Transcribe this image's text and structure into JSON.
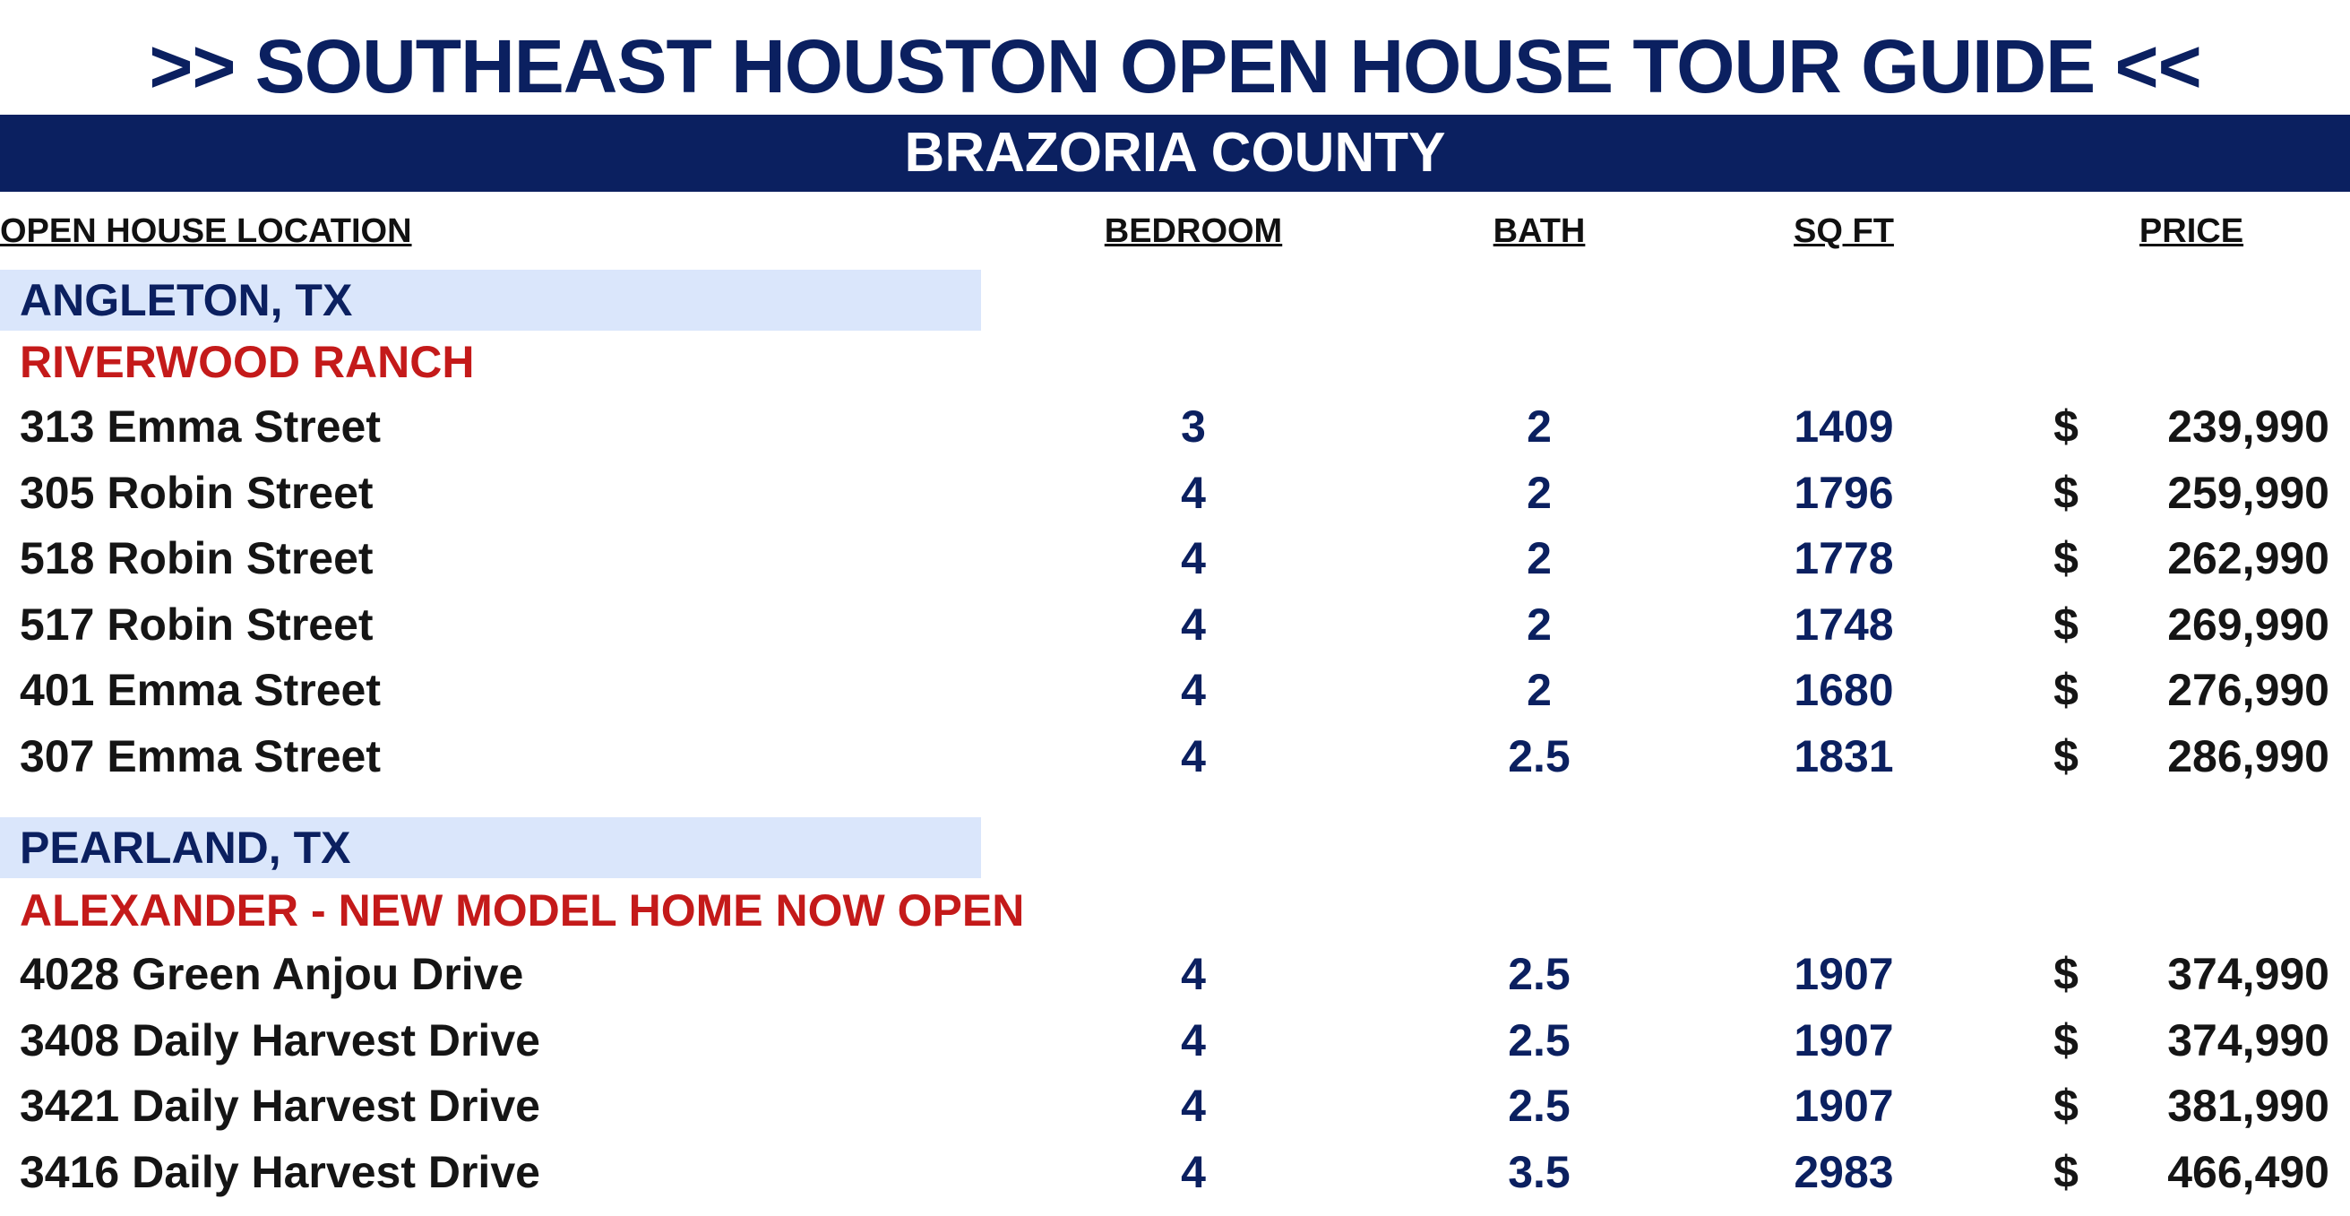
{
  "title": ">> SOUTHEAST HOUSTON OPEN HOUSE TOUR GUIDE <<",
  "county": "BRAZORIA COUNTY",
  "columns": {
    "location": "OPEN HOUSE LOCATION",
    "bedroom": "BEDROOM",
    "bath": "BATH",
    "sqft": "SQ FT",
    "price": "PRICE"
  },
  "currency_symbol": "$",
  "colors": {
    "navy": "#0b2060",
    "city_band": "#dae6fb",
    "community_red": "#c41a1a"
  },
  "sections": [
    {
      "city": "ANGLETON, TX",
      "community": "RIVERWOOD RANCH",
      "rows": [
        {
          "address": "313 Emma Street",
          "bedroom": "3",
          "bath": "2",
          "sqft": "1409",
          "price": "239,990"
        },
        {
          "address": "305 Robin Street",
          "bedroom": "4",
          "bath": "2",
          "sqft": "1796",
          "price": "259,990"
        },
        {
          "address": "518 Robin Street",
          "bedroom": "4",
          "bath": "2",
          "sqft": "1778",
          "price": "262,990"
        },
        {
          "address": "517 Robin Street",
          "bedroom": "4",
          "bath": "2",
          "sqft": "1748",
          "price": "269,990"
        },
        {
          "address": "401 Emma Street",
          "bedroom": "4",
          "bath": "2",
          "sqft": "1680",
          "price": "276,990"
        },
        {
          "address": "307 Emma Street",
          "bedroom": "4",
          "bath": "2.5",
          "sqft": "1831",
          "price": "286,990"
        }
      ]
    },
    {
      "city": "PEARLAND, TX",
      "community": "ALEXANDER - NEW MODEL HOME NOW OPEN",
      "rows": [
        {
          "address": "4028 Green Anjou Drive",
          "bedroom": "4",
          "bath": "2.5",
          "sqft": "1907",
          "price": "374,990"
        },
        {
          "address": "3408 Daily Harvest Drive",
          "bedroom": "4",
          "bath": "2.5",
          "sqft": "1907",
          "price": "374,990"
        },
        {
          "address": "3421 Daily Harvest Drive",
          "bedroom": "4",
          "bath": "2.5",
          "sqft": "1907",
          "price": "381,990"
        },
        {
          "address": "3416 Daily Harvest Drive",
          "bedroom": "4",
          "bath": "3.5",
          "sqft": "2983",
          "price": "466,490"
        }
      ]
    }
  ]
}
